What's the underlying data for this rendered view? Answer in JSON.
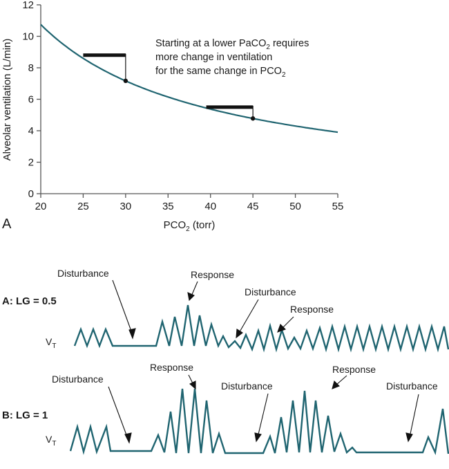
{
  "colors": {
    "curve": "#1f6470",
    "ink": "#111111",
    "axis": "#555555"
  },
  "chart_data": {
    "type": "line",
    "title": "",
    "xlabel": "PCO",
    "xlabel_sub": "2",
    "xlabel_suffix": " (torr)",
    "ylabel": "Alveolar ventilation (L/min)",
    "xlim": [
      20,
      55
    ],
    "ylim": [
      0,
      12
    ],
    "xticks": [
      20,
      25,
      30,
      35,
      40,
      45,
      50,
      55
    ],
    "yticks": [
      0,
      2,
      4,
      6,
      8,
      10,
      12
    ],
    "series": [
      {
        "name": "Alveolar ventilation vs PCO2",
        "x": [
          20,
          22.5,
          25,
          27.5,
          30,
          32.5,
          35,
          37.5,
          40,
          42.5,
          45,
          47.5,
          50,
          52.5,
          55
        ],
        "y": [
          10.75,
          9.56,
          8.6,
          7.82,
          7.17,
          6.62,
          6.14,
          5.73,
          5.38,
          5.06,
          4.78,
          4.53,
          4.3,
          4.1,
          3.91
        ]
      }
    ],
    "points": [
      {
        "x": 30,
        "y": 7.17
      },
      {
        "x": 45,
        "y": 4.78
      }
    ],
    "change_bars": [
      {
        "x_start": 25,
        "x_end": 30,
        "y_level": 8.8,
        "drop_to_y": 7.17
      },
      {
        "x_start": 39.5,
        "x_end": 45,
        "y_level": 5.5,
        "drop_to_y": 4.78
      }
    ],
    "annotation": {
      "line1_pre": "Starting at a lower PaCO",
      "line1_sub": "2",
      "line1_post": " requires",
      "line2": "more change in ventilation",
      "line3_pre": "for the same change in PCO",
      "line3_sub": "2"
    },
    "panel_letter": "A"
  },
  "waveforms": {
    "panel_letter": "B",
    "vt_label": "V",
    "vt_sub": "T",
    "panel_a": {
      "title": "A: LG = 0.5",
      "labels": [
        "Disturbance",
        "Response",
        "Disturbance",
        "Response"
      ]
    },
    "panel_b": {
      "title": "B: LG = 1",
      "labels": [
        "Disturbance",
        "Response",
        "Disturbance",
        "Response",
        "Disturbance"
      ]
    }
  }
}
